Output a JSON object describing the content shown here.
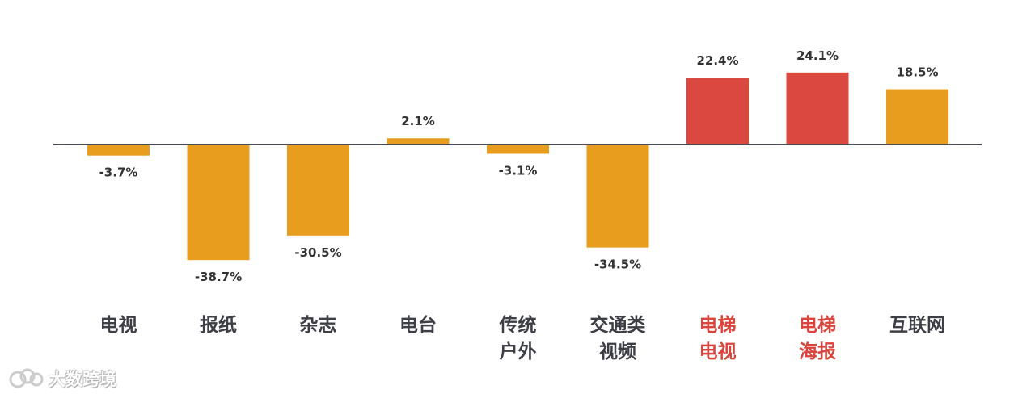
{
  "chart_data": {
    "type": "bar",
    "categories": [
      "电视",
      "报纸",
      "杂志",
      "电台",
      "传统户外",
      "交通类视频",
      "电梯电视",
      "电梯海报",
      "互联网"
    ],
    "category_lines": [
      [
        "电视"
      ],
      [
        "报纸"
      ],
      [
        "杂志"
      ],
      [
        "电台"
      ],
      [
        "传统",
        "户外"
      ],
      [
        "交通类",
        "视频"
      ],
      [
        "电梯",
        "电视"
      ],
      [
        "电梯",
        "海报"
      ],
      [
        "互联网"
      ]
    ],
    "values": [
      -3.7,
      -38.7,
      -30.5,
      2.1,
      -3.1,
      -34.5,
      22.4,
      24.1,
      18.5
    ],
    "value_labels": [
      "-3.7%",
      "-38.7%",
      "-30.5%",
      "2.1%",
      "-3.1%",
      "-34.5%",
      "22.4%",
      "24.1%",
      "18.5%"
    ],
    "highlighted": [
      false,
      false,
      false,
      false,
      false,
      false,
      true,
      true,
      false
    ],
    "unit": "%",
    "title": "",
    "xlabel": "",
    "ylabel": "",
    "ylim": [
      -45,
      30
    ],
    "grid": false,
    "colors": {
      "bar": "#E89D1E",
      "bar_highlight": "#DA4840",
      "label_highlight": "#D9443D",
      "label": "#3E3F46",
      "axis": "#4A4A52"
    }
  },
  "watermark": {
    "text": "大数跨境"
  }
}
